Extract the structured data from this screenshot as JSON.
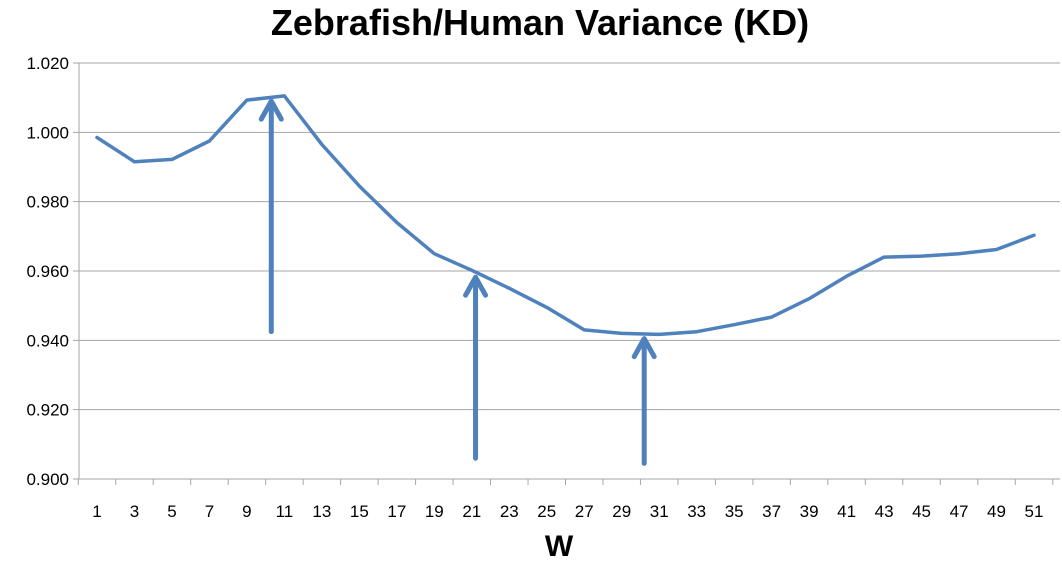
{
  "chart_data": {
    "type": "line",
    "title": "Zebrafish/Human Variance (KD)",
    "xlabel": "W",
    "ylabel": "",
    "ylim": [
      0.9,
      1.02
    ],
    "yticks": [
      "0.900",
      "0.920",
      "0.940",
      "0.960",
      "0.980",
      "1.000",
      "1.020"
    ],
    "ytick_values": [
      0.9,
      0.92,
      0.94,
      0.96,
      0.98,
      1.0,
      1.02
    ],
    "xticks": [
      1,
      3,
      5,
      7,
      9,
      11,
      13,
      15,
      17,
      19,
      21,
      23,
      25,
      27,
      29,
      31,
      33,
      35,
      37,
      39,
      41,
      43,
      45,
      47,
      49,
      51
    ],
    "grid": true,
    "series": [
      {
        "color": "#4f81bd",
        "x": [
          1,
          3,
          5,
          7,
          9,
          11,
          13,
          15,
          17,
          19,
          21,
          23,
          25,
          27,
          29,
          31,
          33,
          35,
          37,
          39,
          41,
          43,
          45,
          47,
          49,
          51
        ],
        "values": [
          0.9985,
          0.9915,
          0.9922,
          0.9975,
          1.0093,
          1.0105,
          0.9965,
          0.9845,
          0.974,
          0.965,
          0.9602,
          0.955,
          0.9495,
          0.943,
          0.942,
          0.9417,
          0.9425,
          0.9445,
          0.9467,
          0.952,
          0.9585,
          0.964,
          0.9643,
          0.965,
          0.9662,
          0.9703
        ]
      }
    ],
    "annotations": [
      {
        "type": "arrow",
        "color": "#4f81bd",
        "x": 10.3,
        "y_from": 0.9425,
        "y_to": 1.009
      },
      {
        "type": "arrow",
        "color": "#4f81bd",
        "x": 21.2,
        "y_from": 0.906,
        "y_to": 0.9582
      },
      {
        "type": "arrow",
        "color": "#4f81bd",
        "x": 30.2,
        "y_from": 0.9045,
        "y_to": 0.9405
      }
    ]
  }
}
